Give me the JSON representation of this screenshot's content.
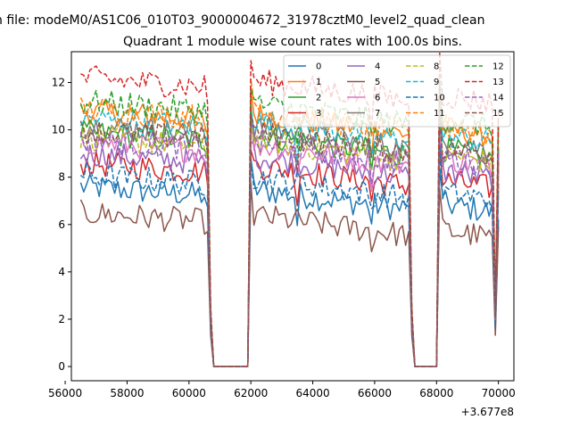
{
  "chart_data": {
    "type": "line",
    "suptitle": "n file: modeM0/AS1C06_010T03_9000004672_31978cztM0_level2_quad_clean",
    "title": "Quadrant 1 module wise count rates with 100.0s bins.",
    "xlabel": "",
    "ylabel": "",
    "x_offset_label": "+3.677e8",
    "xlim": [
      56200,
      70500
    ],
    "ylim": [
      -0.6,
      13.3
    ],
    "xticks": [
      56000,
      58000,
      60000,
      62000,
      64000,
      66000,
      68000,
      70000
    ],
    "xtick_labels": [
      "56000",
      "58000",
      "60000",
      "62000",
      "64000",
      "66000",
      "68000",
      "70000"
    ],
    "yticks": [
      0,
      2,
      4,
      6,
      8,
      10,
      12
    ],
    "ytick_labels": [
      "0",
      "2",
      "4",
      "6",
      "8",
      "10",
      "12"
    ],
    "grid": false,
    "legend_position": "top-right",
    "legend_columns": 4,
    "x_range": [
      56500,
      70000
    ],
    "x_step": 100,
    "gaps": [
      [
        60800,
        61900
      ],
      [
        67300,
        68000
      ]
    ],
    "series": [
      {
        "name": "0",
        "color": "#1f77b4",
        "dash": "solid",
        "level": 7.1
      },
      {
        "name": "1",
        "color": "#ff7f0e",
        "dash": "solid",
        "level": 10.3
      },
      {
        "name": "2",
        "color": "#2ca02c",
        "dash": "solid",
        "level": 9.4
      },
      {
        "name": "3",
        "color": "#d62728",
        "dash": "solid",
        "level": 8.1
      },
      {
        "name": "4",
        "color": "#9467bd",
        "dash": "solid",
        "level": 8.5
      },
      {
        "name": "5",
        "color": "#8c564b",
        "dash": "solid",
        "level": 6.0
      },
      {
        "name": "6",
        "color": "#e377c2",
        "dash": "solid",
        "level": 9.0
      },
      {
        "name": "7",
        "color": "#7f7f7f",
        "dash": "solid",
        "level": 9.7
      },
      {
        "name": "8",
        "color": "#bcbd22",
        "dash": "dashed",
        "level": 9.2
      },
      {
        "name": "9",
        "color": "#17becf",
        "dash": "dashed",
        "level": 10.0
      },
      {
        "name": "10",
        "color": "#1f77b4",
        "dash": "dashed",
        "level": 7.6
      },
      {
        "name": "11",
        "color": "#ff7f0e",
        "dash": "dashed",
        "level": 10.4
      },
      {
        "name": "12",
        "color": "#2ca02c",
        "dash": "dashed",
        "level": 10.7
      },
      {
        "name": "13",
        "color": "#d62728",
        "dash": "dashed",
        "level": 11.7
      },
      {
        "name": "14",
        "color": "#9467bd",
        "dash": "dashed",
        "level": 9.1
      },
      {
        "name": "15",
        "color": "#8c564b",
        "dash": "dashed",
        "level": 9.5
      }
    ]
  }
}
